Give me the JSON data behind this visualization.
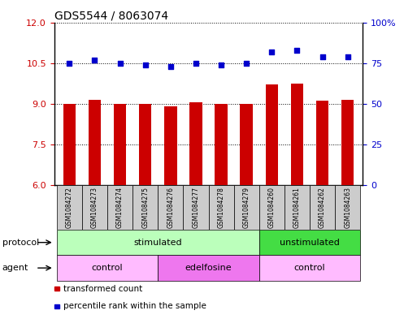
{
  "title": "GDS5544 / 8063074",
  "samples": [
    "GSM1084272",
    "GSM1084273",
    "GSM1084274",
    "GSM1084275",
    "GSM1084276",
    "GSM1084277",
    "GSM1084278",
    "GSM1084279",
    "GSM1084260",
    "GSM1084261",
    "GSM1084262",
    "GSM1084263"
  ],
  "bar_values": [
    9.0,
    9.15,
    9.0,
    9.0,
    8.9,
    9.05,
    9.0,
    9.0,
    9.7,
    9.75,
    9.1,
    9.15
  ],
  "scatter_values": [
    75,
    77,
    75,
    74,
    73,
    75,
    74,
    75,
    82,
    83,
    79,
    79
  ],
  "ylim_left": [
    6,
    12
  ],
  "ylim_right": [
    0,
    100
  ],
  "yticks_left": [
    6,
    7.5,
    9,
    10.5,
    12
  ],
  "yticks_right": [
    0,
    25,
    50,
    75,
    100
  ],
  "bar_color": "#cc0000",
  "scatter_color": "#0000cc",
  "bar_width": 0.5,
  "protocol_labels": [
    {
      "text": "stimulated",
      "start": 0,
      "end": 7,
      "color": "#bbffbb"
    },
    {
      "text": "unstimulated",
      "start": 8,
      "end": 11,
      "color": "#44dd44"
    }
  ],
  "agent_labels": [
    {
      "text": "control",
      "start": 0,
      "end": 3,
      "color": "#ffbbff"
    },
    {
      "text": "edelfosine",
      "start": 4,
      "end": 7,
      "color": "#ee77ee"
    },
    {
      "text": "control",
      "start": 8,
      "end": 11,
      "color": "#ffbbff"
    }
  ],
  "protocol_row_label": "protocol",
  "agent_row_label": "agent",
  "legend_items": [
    {
      "label": "transformed count",
      "color": "#cc0000"
    },
    {
      "label": "percentile rank within the sample",
      "color": "#0000cc"
    }
  ],
  "sample_bg_color": "#cccccc",
  "title_fontsize": 10,
  "tick_fontsize": 8,
  "sample_fontsize": 5.5,
  "row_label_fontsize": 8,
  "annotation_fontsize": 8,
  "legend_fontsize": 7.5
}
